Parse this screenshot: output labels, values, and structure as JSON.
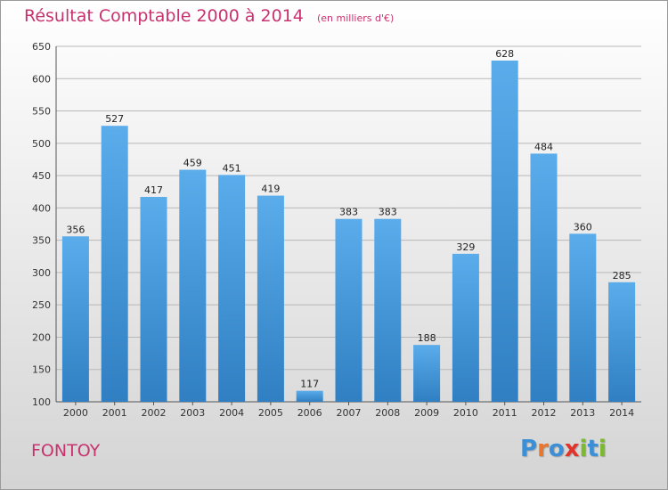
{
  "title": "Résultat Comptable 2000 à 2014",
  "unit_label": "(en milliers d'€)",
  "location": "FONTOY",
  "brand": {
    "letters": [
      "P",
      "r",
      "o",
      "x",
      "i",
      "t",
      "i"
    ],
    "colors": [
      "#3a8fd6",
      "#e8762c",
      "#3a8fd6",
      "#e2332a",
      "#7cb832",
      "#3a8fd6",
      "#7cb832"
    ]
  },
  "colors": {
    "bar_top": "#5aaceb",
    "bar_bottom": "#2f7fc2",
    "title": "#c8326e",
    "grid": "#b8b8b8"
  },
  "chart_data": {
    "type": "bar",
    "title": "Résultat Comptable 2000 à 2014",
    "xlabel": "",
    "ylabel": "",
    "categories": [
      "2000",
      "2001",
      "2002",
      "2003",
      "2004",
      "2005",
      "2006",
      "2007",
      "2008",
      "2009",
      "2010",
      "2011",
      "2012",
      "2013",
      "2014"
    ],
    "values": [
      356,
      527,
      417,
      459,
      451,
      419,
      117,
      383,
      383,
      188,
      329,
      628,
      484,
      360,
      285
    ],
    "ylim": [
      100,
      650
    ],
    "yticks": [
      100,
      150,
      200,
      250,
      300,
      350,
      400,
      450,
      500,
      550,
      600,
      650
    ],
    "grid": true,
    "data_labels": true
  }
}
